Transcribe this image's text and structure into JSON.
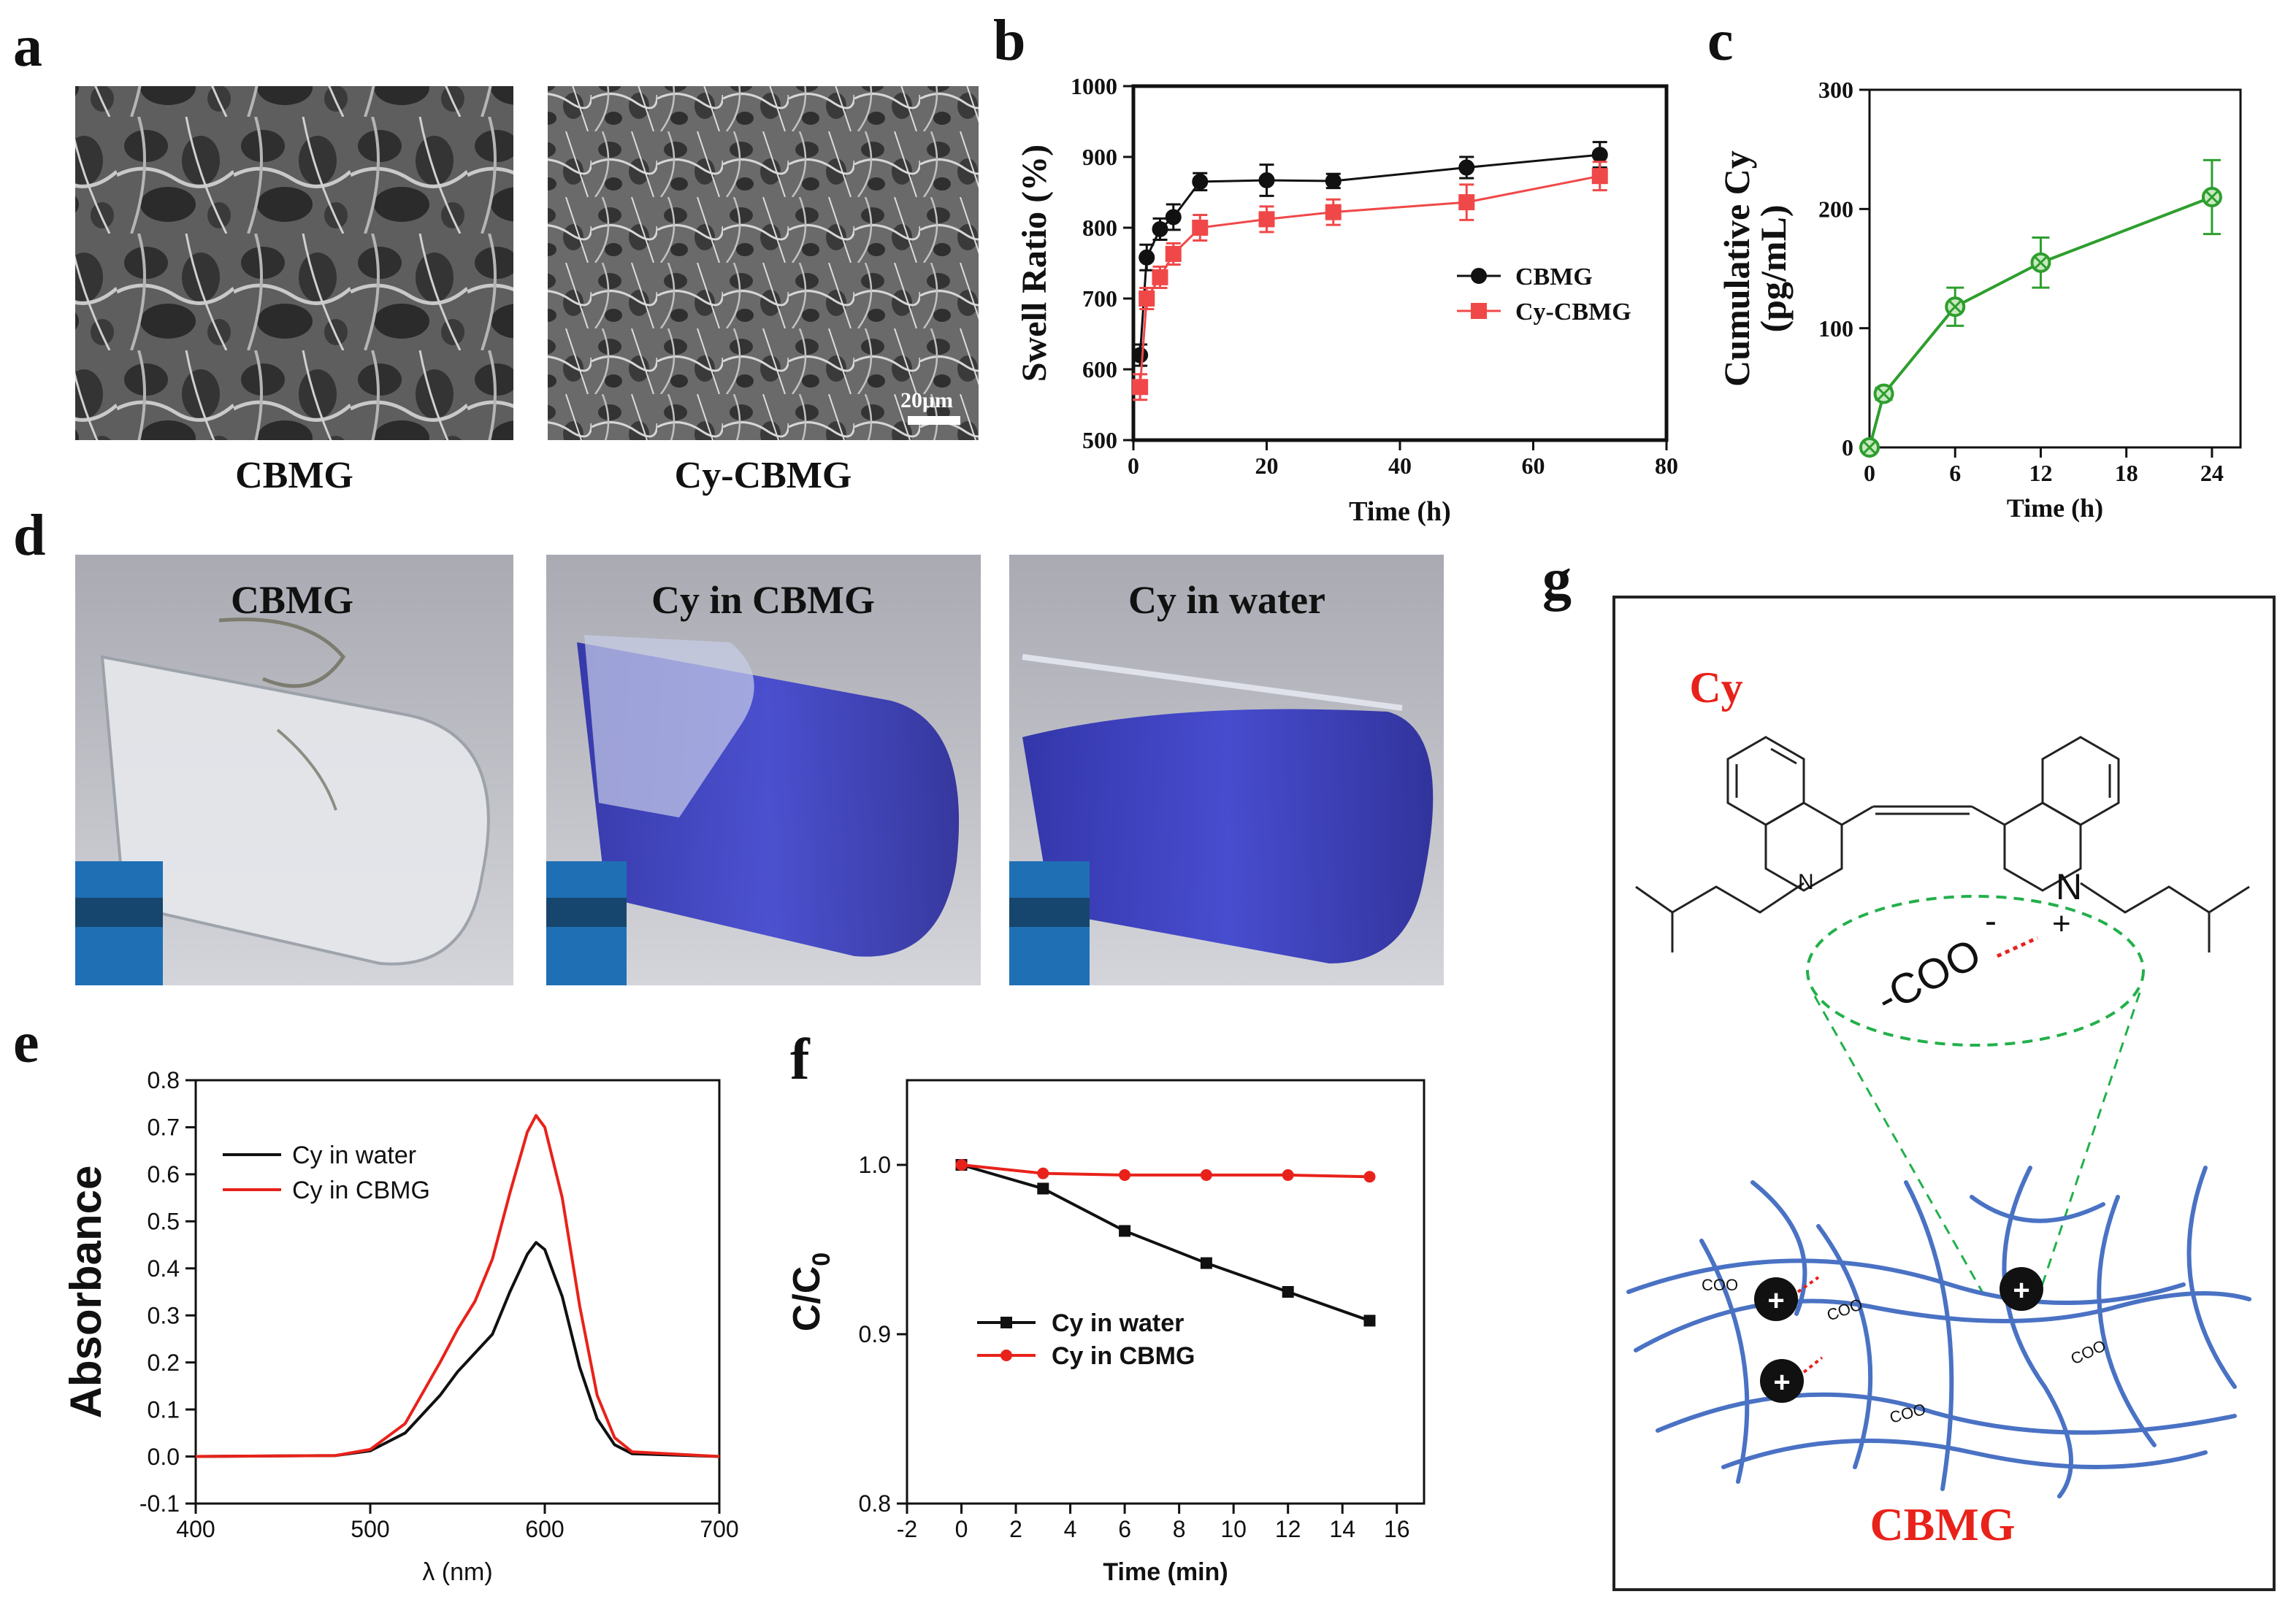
{
  "panels": {
    "a": "a",
    "b": "b",
    "c": "c",
    "d": "d",
    "e": "e",
    "f": "f",
    "g": "g"
  },
  "panel_a": {
    "left_caption": "CBMG",
    "right_caption": "Cy-CBMG",
    "scale_bar": "20μm"
  },
  "panel_d": {
    "labels": [
      "CBMG",
      "Cy in CBMG",
      "Cy in water"
    ]
  },
  "panel_g": {
    "cy_label": "Cy",
    "cbmg_label": "CBMG",
    "nitrogen_left": "N",
    "nitrogen_right": "N",
    "plus": "+",
    "carboxylate": "-COO",
    "carboxylate_charge": "-",
    "site_label": "COO",
    "cation": "+"
  },
  "colors": {
    "cbmg_black": "#111111",
    "cy_cbmg_red": "#f04848",
    "release_green": "#2e9e2e",
    "cy_blue": "#3a3ec8",
    "network_blue": "#4a72c4",
    "dashed_green": "#22b04a",
    "label_red": "#e8221a"
  },
  "chart_data": [
    {
      "id": "b",
      "type": "line",
      "xlabel": "Time (h)",
      "ylabel": "Swell Ratio (%)",
      "xlim": [
        0,
        80
      ],
      "ylim": [
        500,
        1000
      ],
      "xticks": [
        "0",
        "20",
        "40",
        "60",
        "80"
      ],
      "yticks": [
        "500",
        "600",
        "700",
        "800",
        "900",
        "1000"
      ],
      "legend_position": "right-middle",
      "series": [
        {
          "name": "CBMG",
          "marker": "circle",
          "x": [
            1,
            2,
            4,
            6,
            10,
            20,
            30,
            50,
            70
          ],
          "y": [
            620,
            758,
            798,
            815,
            865,
            867,
            866,
            885,
            903
          ],
          "err": [
            15,
            18,
            15,
            18,
            12,
            22,
            10,
            15,
            18
          ]
        },
        {
          "name": "Cy-CBMG",
          "marker": "square",
          "x": [
            1,
            2,
            4,
            6,
            10,
            20,
            30,
            50,
            70
          ],
          "y": [
            575,
            700,
            730,
            763,
            800,
            812,
            822,
            836,
            873
          ],
          "err": [
            18,
            15,
            15,
            15,
            18,
            18,
            18,
            25,
            20
          ]
        }
      ]
    },
    {
      "id": "c",
      "type": "line",
      "xlabel": "Time (h)",
      "ylabel_line1": "Cumulative  Cy",
      "ylabel_line2": "(pg/mL)",
      "xlim": [
        0,
        26
      ],
      "ylim": [
        0,
        300
      ],
      "xticks": [
        "0",
        "6",
        "12",
        "18",
        "24"
      ],
      "yticks": [
        "0",
        "100",
        "200",
        "300"
      ],
      "series": [
        {
          "marker": "crossed-circle",
          "x": [
            0,
            1,
            6,
            12,
            24
          ],
          "y": [
            0,
            45,
            118,
            155,
            210
          ],
          "err": [
            3,
            5,
            16,
            21,
            31
          ]
        }
      ]
    },
    {
      "id": "e",
      "type": "line",
      "xlabel": "λ (nm)",
      "ylabel": "Absorbance",
      "xlim": [
        400,
        700
      ],
      "ylim": [
        -0.1,
        0.8
      ],
      "xticks": [
        "400",
        "500",
        "600",
        "700"
      ],
      "yticks": [
        "-0.1",
        "0.0",
        "0.1",
        "0.2",
        "0.3",
        "0.4",
        "0.5",
        "0.6",
        "0.7",
        "0.8"
      ],
      "legend_position": "top-left",
      "series": [
        {
          "name": "Cy in water",
          "x": [
            400,
            480,
            500,
            520,
            540,
            550,
            560,
            570,
            580,
            590,
            595,
            600,
            610,
            620,
            630,
            640,
            650,
            700
          ],
          "y": [
            0.0,
            0.002,
            0.012,
            0.05,
            0.13,
            0.18,
            0.22,
            0.26,
            0.35,
            0.43,
            0.455,
            0.44,
            0.34,
            0.19,
            0.08,
            0.025,
            0.006,
            0.0
          ]
        },
        {
          "name": "Cy in CBMG",
          "x": [
            400,
            480,
            500,
            520,
            540,
            550,
            560,
            570,
            580,
            590,
            595,
            600,
            610,
            620,
            630,
            640,
            650,
            700
          ],
          "y": [
            0.0,
            0.002,
            0.015,
            0.07,
            0.2,
            0.27,
            0.33,
            0.42,
            0.56,
            0.69,
            0.725,
            0.7,
            0.55,
            0.32,
            0.13,
            0.04,
            0.01,
            0.0
          ]
        }
      ]
    },
    {
      "id": "f",
      "type": "line",
      "xlabel": "Time (min)",
      "ylabel": "C/C",
      "ylabel_sub": "0",
      "xlim": [
        -2,
        17
      ],
      "ylim": [
        0.8,
        1.05
      ],
      "xticks": [
        "-2",
        "0",
        "2",
        "4",
        "6",
        "8",
        "10",
        "12",
        "14",
        "16"
      ],
      "yticks": [
        "0.8",
        "0.9",
        "1.0"
      ],
      "legend_position": "bottom-left",
      "series": [
        {
          "name": "Cy in water",
          "marker": "square",
          "x": [
            0,
            3,
            6,
            9,
            12,
            15
          ],
          "y": [
            1.0,
            0.986,
            0.961,
            0.942,
            0.925,
            0.908
          ]
        },
        {
          "name": "Cy in CBMG",
          "marker": "circle",
          "x": [
            0,
            3,
            6,
            9,
            12,
            15
          ],
          "y": [
            1.0,
            0.995,
            0.994,
            0.994,
            0.994,
            0.993
          ]
        }
      ]
    }
  ]
}
